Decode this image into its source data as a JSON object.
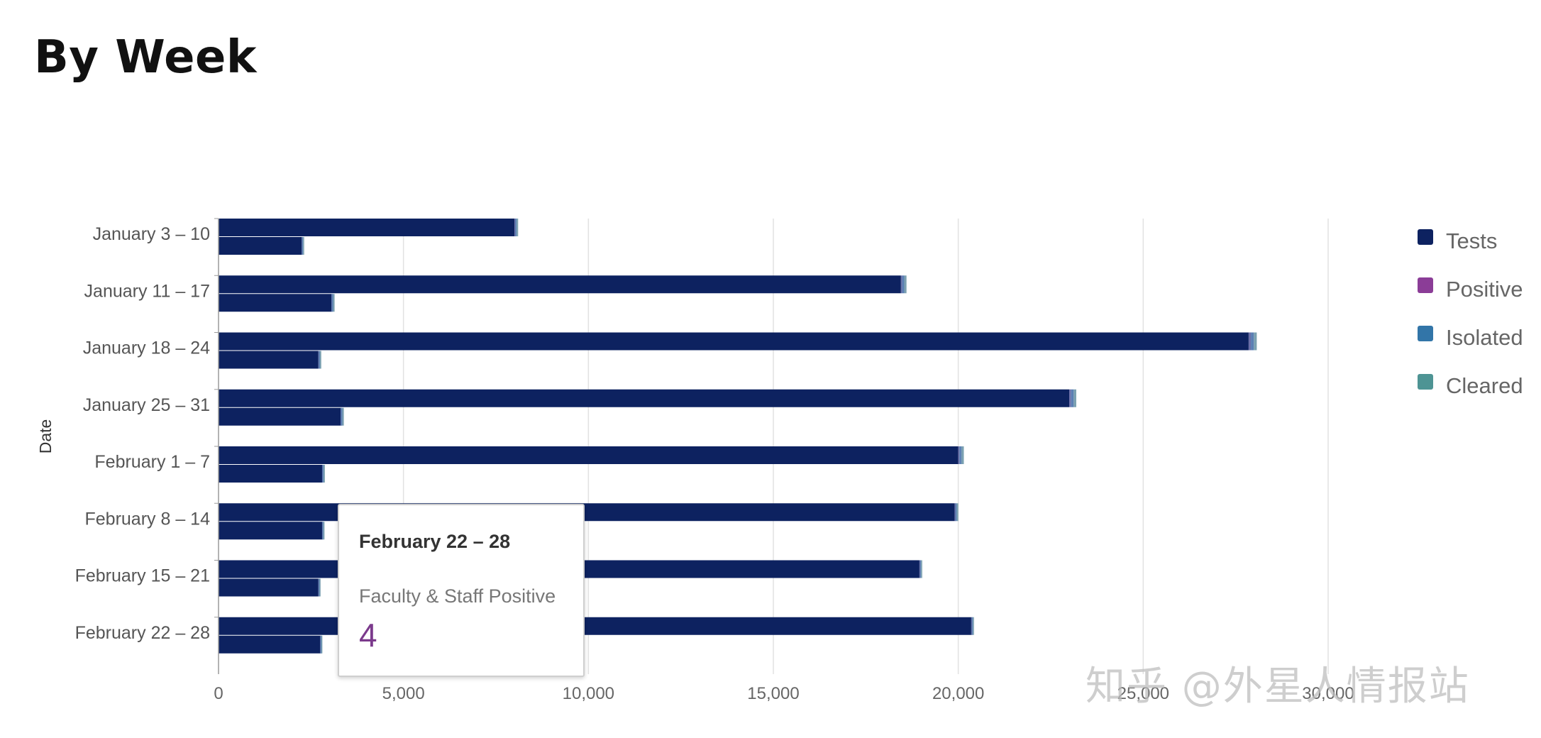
{
  "page": {
    "title": "By Week"
  },
  "watermark": "知乎 @外星人情报站",
  "tooltip": {
    "title": "February 22 – 28",
    "series": "Faculty & Staff Positive",
    "value": "4"
  },
  "chart_data": {
    "type": "bar",
    "orientation": "horizontal",
    "stacked": true,
    "ylabel": "Date",
    "xlabel": "",
    "xlim": [
      0,
      30000
    ],
    "xticks": [
      "0",
      "5,000",
      "10,000",
      "15,000",
      "20,000",
      "25,000",
      "30,000"
    ],
    "grid": true,
    "legend_position": "right",
    "categories": [
      "January 3 – 10",
      "January 11 – 17",
      "January 18 – 24",
      "January 25 – 31",
      "February 1 – 7",
      "February 8 – 14",
      "February 15 – 21",
      "February 22 – 28"
    ],
    "legend": [
      {
        "name": "Tests",
        "color": "#0d2260"
      },
      {
        "name": "Positive",
        "color": "#8b3d97"
      },
      {
        "name": "Isolated",
        "color": "#3275a8"
      },
      {
        "name": "Cleared",
        "color": "#4e9494"
      }
    ],
    "groups": [
      {
        "tests": [
          8000,
          18450,
          27850,
          23000,
          20000,
          19900,
          18950,
          20350
        ],
        "positive": [
          20,
          30,
          60,
          50,
          30,
          20,
          15,
          15
        ],
        "isolated": [
          40,
          60,
          80,
          70,
          60,
          40,
          30,
          30
        ],
        "cleared": [
          40,
          60,
          80,
          70,
          60,
          40,
          30,
          30
        ]
      },
      {
        "tests": [
          2250,
          3050,
          2700,
          3300,
          2800,
          2800,
          2700,
          2750
        ],
        "positive": [
          5,
          8,
          7,
          8,
          6,
          5,
          5,
          4
        ],
        "isolated": [
          30,
          40,
          35,
          40,
          35,
          30,
          25,
          25
        ],
        "cleared": [
          30,
          40,
          35,
          40,
          35,
          30,
          25,
          25
        ]
      }
    ]
  }
}
